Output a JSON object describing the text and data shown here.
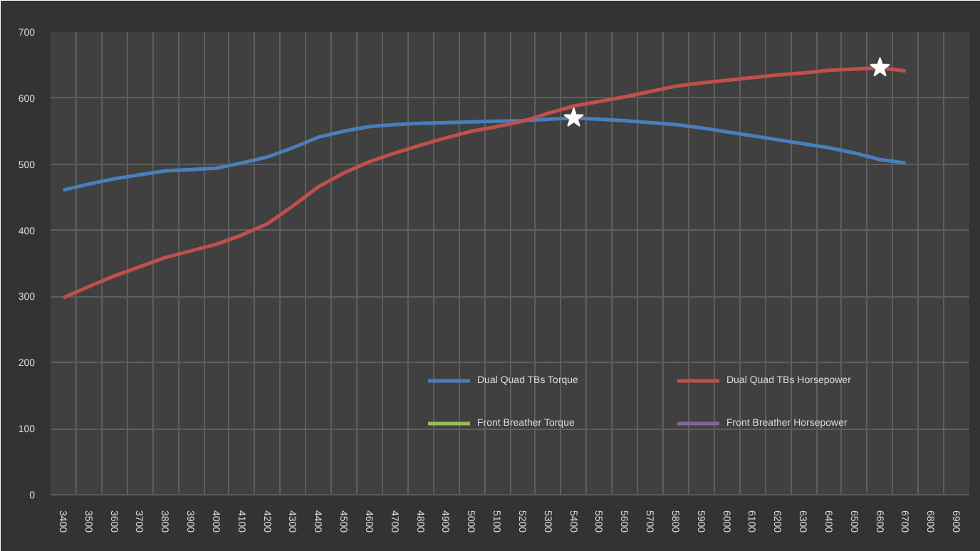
{
  "chart_data": {
    "type": "line",
    "categories": [
      "3400",
      "3500",
      "3600",
      "3700",
      "3800",
      "3900",
      "4000",
      "4100",
      "4200",
      "4300",
      "4400",
      "4500",
      "4600",
      "4700",
      "4800",
      "4900",
      "5000",
      "5100",
      "5200",
      "5300",
      "5400",
      "5500",
      "5600",
      "5700",
      "5800",
      "5900",
      "6000",
      "6100",
      "6200",
      "6300",
      "6400",
      "6500",
      "6600",
      "6700",
      "6800",
      "6900"
    ],
    "series": [
      {
        "name": "Dual Quad TBs Torque",
        "color": "#4a7ebb",
        "values": [
          461,
          470,
          478,
          484,
          490,
          492,
          494,
          502,
          511,
          525,
          541,
          550,
          557,
          560,
          562,
          563,
          564,
          565,
          566,
          568,
          570,
          568,
          566,
          563,
          560,
          555,
          549,
          543,
          537,
          531,
          525,
          517,
          507,
          502,
          null,
          null
        ]
      },
      {
        "name": "Dual Quad TBs Horsepower",
        "color": "#c0504d",
        "values": [
          298,
          315,
          331,
          345,
          359,
          369,
          379,
          393,
          410,
          437,
          466,
          487,
          504,
          517,
          529,
          540,
          550,
          557,
          565,
          577,
          588,
          595,
          602,
          610,
          618,
          623,
          627,
          631,
          635,
          638,
          642,
          644,
          646,
          641,
          null,
          null
        ]
      },
      {
        "name": "Front Breather Torque",
        "color": "#9bbb59",
        "values": [
          null,
          null,
          null,
          null,
          null,
          null,
          null,
          null,
          null,
          null,
          null,
          null,
          null,
          null,
          null,
          null,
          null,
          null,
          null,
          null,
          null,
          null,
          null,
          null,
          null,
          null,
          null,
          null,
          null,
          null,
          null,
          null,
          null,
          null,
          null,
          null
        ]
      },
      {
        "name": "Front Breather Horsepower",
        "color": "#8064a2",
        "values": [
          null,
          null,
          null,
          null,
          null,
          null,
          null,
          null,
          null,
          null,
          null,
          null,
          null,
          null,
          null,
          null,
          null,
          null,
          null,
          null,
          null,
          null,
          null,
          null,
          null,
          null,
          null,
          null,
          null,
          null,
          null,
          null,
          null,
          null,
          null,
          null
        ]
      },
      {
        "type": "scatter",
        "marker": "star",
        "color": "#ffffff",
        "values": [
          null,
          null,
          null,
          null,
          null,
          null,
          null,
          null,
          null,
          null,
          null,
          null,
          null,
          null,
          null,
          null,
          null,
          null,
          null,
          null,
          570,
          null,
          null,
          null,
          null,
          null,
          null,
          null,
          null,
          null,
          null,
          null,
          646,
          null,
          null,
          null
        ]
      }
    ],
    "ylim": [
      0,
      700
    ],
    "yticks": [
      0,
      100,
      200,
      300,
      400,
      500,
      600,
      700
    ],
    "grid": true,
    "legend": "bottom right",
    "marker": "none",
    "line_style": "solid"
  }
}
